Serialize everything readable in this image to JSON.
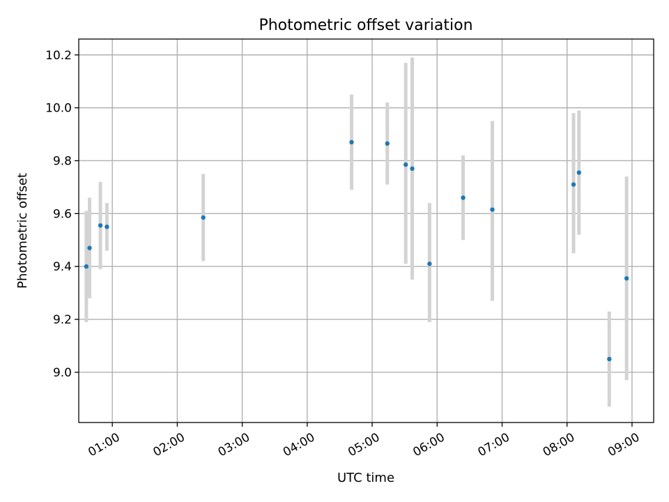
{
  "chart_data": {
    "type": "scatter",
    "title": "Photometric offset variation",
    "xlabel": "UTC time",
    "ylabel": "Photometric offset",
    "xlim": [
      "00:29",
      "09:20"
    ],
    "ylim": [
      8.81,
      10.26
    ],
    "x_ticks": [
      "01:00",
      "02:00",
      "03:00",
      "04:00",
      "05:00",
      "06:00",
      "07:00",
      "08:00",
      "09:00"
    ],
    "y_ticks": [
      "9.0",
      "9.2",
      "9.4",
      "9.6",
      "9.8",
      "10.0",
      "10.2"
    ],
    "grid": true,
    "legend": "none",
    "colors": {
      "marker": "#1f77b4",
      "errorbar": "#d3d3d3"
    },
    "points": [
      {
        "time": "00:36",
        "y": 9.4,
        "ylow": 9.19,
        "yhigh": 9.61
      },
      {
        "time": "00:39",
        "y": 9.47,
        "ylow": 9.28,
        "yhigh": 9.66
      },
      {
        "time": "00:49",
        "y": 9.555,
        "ylow": 9.39,
        "yhigh": 9.72
      },
      {
        "time": "00:55",
        "y": 9.55,
        "ylow": 9.46,
        "yhigh": 9.64
      },
      {
        "time": "02:24",
        "y": 9.585,
        "ylow": 9.42,
        "yhigh": 9.75
      },
      {
        "time": "04:41",
        "y": 9.87,
        "ylow": 9.69,
        "yhigh": 10.05
      },
      {
        "time": "05:14",
        "y": 9.865,
        "ylow": 9.71,
        "yhigh": 10.02
      },
      {
        "time": "05:31",
        "y": 9.785,
        "ylow": 9.41,
        "yhigh": 10.17
      },
      {
        "time": "05:37",
        "y": 9.77,
        "ylow": 9.35,
        "yhigh": 10.19
      },
      {
        "time": "05:53",
        "y": 9.41,
        "ylow": 9.19,
        "yhigh": 9.64
      },
      {
        "time": "06:24",
        "y": 9.66,
        "ylow": 9.5,
        "yhigh": 9.82
      },
      {
        "time": "06:51",
        "y": 9.615,
        "ylow": 9.27,
        "yhigh": 9.95
      },
      {
        "time": "08:06",
        "y": 9.71,
        "ylow": 9.45,
        "yhigh": 9.98
      },
      {
        "time": "08:11",
        "y": 9.755,
        "ylow": 9.52,
        "yhigh": 9.99
      },
      {
        "time": "08:39",
        "y": 9.05,
        "ylow": 8.87,
        "yhigh": 9.23
      },
      {
        "time": "08:55",
        "y": 9.355,
        "ylow": 8.97,
        "yhigh": 9.74
      }
    ]
  }
}
